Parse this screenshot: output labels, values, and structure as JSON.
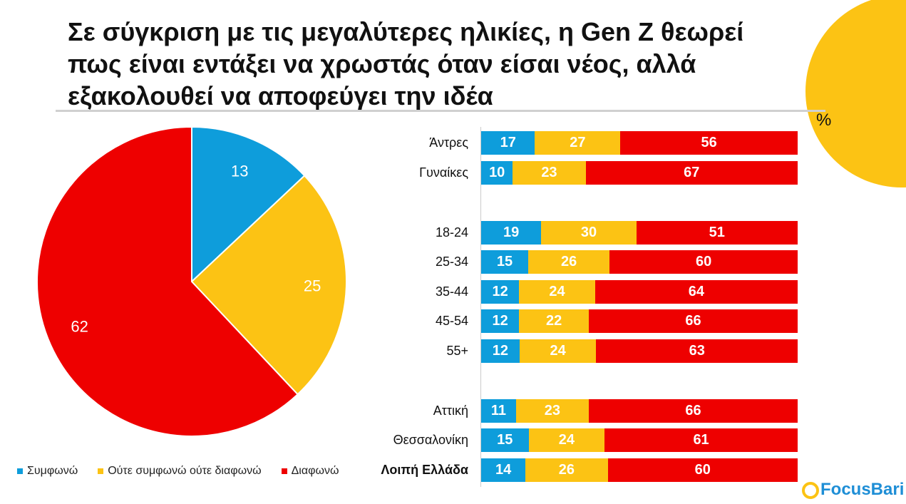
{
  "title": "Σε σύγκριση με τις μεγαλύτερες ηλικίες, η Gen Z θεωρεί πως είναι εντάξει να χρωστάς όταν είσαι νέος, αλλά εξακολουθεί να αποφεύγει την ιδέα",
  "unit_label": "%",
  "logo": "FocusBari",
  "colors": {
    "agree": "#0e9ddb",
    "neutral": "#fcc314",
    "disagree": "#ee0000"
  },
  "chart_data": [
    {
      "type": "pie",
      "labels": [
        "Συμφωνώ",
        "Ούτε συμφωνώ ούτε διαφωνώ",
        "Διαφωνώ"
      ],
      "values": [
        13,
        25,
        62
      ],
      "legend": "bottom"
    },
    {
      "type": "bar",
      "stacked": true,
      "orientation": "horizontal",
      "categories": [
        "Άντρες",
        "Γυναίκες",
        "18-24",
        "25-34",
        "35-44",
        "45-54",
        "55+",
        "Αττική",
        "Θεσσαλονίκη",
        "Λοιπή Ελλάδα"
      ],
      "series": [
        {
          "name": "Συμφωνώ",
          "values": [
            17,
            10,
            19,
            15,
            12,
            12,
            12,
            11,
            15,
            14
          ]
        },
        {
          "name": "Ούτε συμφωνώ ούτε διαφωνώ",
          "values": [
            27,
            23,
            30,
            26,
            24,
            22,
            24,
            23,
            24,
            26
          ]
        },
        {
          "name": "Διαφωνώ",
          "values": [
            56,
            67,
            51,
            60,
            64,
            66,
            63,
            66,
            61,
            60
          ]
        }
      ],
      "xlim": [
        0,
        100
      ]
    }
  ]
}
